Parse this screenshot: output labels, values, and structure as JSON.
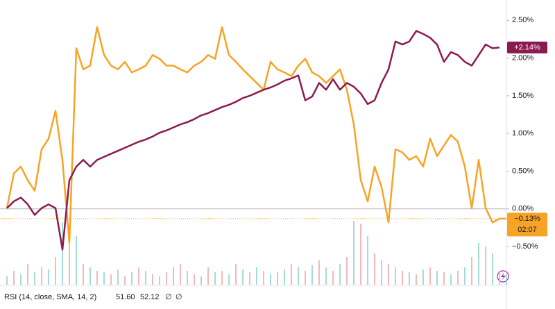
{
  "chart_data": {
    "type": "line",
    "categories": [
      null,
      null,
      null,
      null,
      null,
      null,
      null,
      null,
      null,
      null,
      null,
      null,
      null,
      null,
      null,
      null,
      null,
      null,
      null,
      null,
      null,
      null,
      null,
      null,
      null,
      null,
      null,
      null,
      null,
      null,
      null,
      null,
      null,
      null,
      null,
      null,
      null,
      null,
      null,
      null,
      null,
      null,
      null,
      null,
      null,
      null,
      null,
      null,
      null,
      null,
      null,
      null,
      null,
      null,
      null,
      null,
      null,
      null,
      null,
      null,
      null,
      null,
      null,
      null,
      null,
      null,
      null,
      null,
      null,
      null,
      null,
      null,
      null
    ],
    "series": [
      {
        "color": "#f7a325",
        "values": [
          0.01,
          0.47,
          0.56,
          0.38,
          0.24,
          0.79,
          0.93,
          1.3,
          0.65,
          -0.45,
          2.13,
          1.85,
          1.9,
          2.41,
          2.04,
          1.9,
          1.85,
          1.95,
          1.81,
          1.85,
          1.9,
          2.04,
          1.99,
          1.9,
          1.9,
          1.85,
          1.81,
          1.9,
          1.95,
          2.04,
          1.99,
          2.41,
          2.04,
          1.95,
          1.85,
          1.76,
          1.67,
          1.58,
          1.95,
          1.85,
          1.81,
          1.76,
          1.9,
          1.99,
          1.81,
          1.76,
          1.67,
          1.76,
          1.85,
          1.58,
          1.12,
          0.38,
          0.1,
          0.56,
          0.29,
          -0.18,
          0.79,
          0.75,
          0.65,
          0.7,
          0.56,
          0.93,
          0.7,
          0.84,
          0.98,
          0.89,
          0.56,
          0.01,
          0.65,
          0.01,
          -0.18,
          -0.13,
          -0.13
        ]
      },
      {
        "color": "#8b1a4f",
        "values": [
          0.01,
          0.1,
          0.15,
          0.06,
          -0.08,
          0.01,
          0.06,
          0.01,
          -0.54,
          0.38,
          0.56,
          0.65,
          0.56,
          0.65,
          0.69,
          0.73,
          0.77,
          0.81,
          0.85,
          0.89,
          0.92,
          0.96,
          1.01,
          1.04,
          1.08,
          1.12,
          1.15,
          1.19,
          1.24,
          1.27,
          1.31,
          1.35,
          1.38,
          1.42,
          1.47,
          1.5,
          1.54,
          1.58,
          1.61,
          1.65,
          1.7,
          1.73,
          1.77,
          1.44,
          1.49,
          1.67,
          1.58,
          1.72,
          1.58,
          1.67,
          1.62,
          1.53,
          1.39,
          1.44,
          1.67,
          1.85,
          2.22,
          2.18,
          2.22,
          2.36,
          2.32,
          2.27,
          2.18,
          1.95,
          2.08,
          2.04,
          1.95,
          1.9,
          2.04,
          2.18,
          2.13,
          2.14,
          null
        ]
      }
    ],
    "ylim": [
      -1.0,
      2.77
    ],
    "yticks": [
      {
        "value": 2.5,
        "label": "2.50%"
      },
      {
        "value": 2.0,
        "label": "2.00%"
      },
      {
        "value": 1.5,
        "label": "1.50%"
      },
      {
        "value": 1.0,
        "label": "1.00%"
      },
      {
        "value": 0.5,
        "label": "0.50%"
      },
      {
        "value": 0,
        "label": "0.00%"
      },
      {
        "value": -0.5,
        "label": "−0.50%"
      }
    ],
    "zero_line": true,
    "last_values": [
      {
        "value": 2.14,
        "label": "+2.14%",
        "color": "#8b1a4f"
      },
      {
        "value": -0.13,
        "label": "−0.13%",
        "color": "#f7a325",
        "countdown": "02:07"
      }
    ],
    "volume": {
      "vlim": [
        0,
        100
      ],
      "values": [
        12,
        20,
        15,
        30,
        18,
        25,
        22,
        40,
        90,
        85,
        70,
        30,
        25,
        20,
        18,
        15,
        22,
        12,
        18,
        25,
        20,
        15,
        12,
        18,
        25,
        30,
        20,
        15,
        12,
        25,
        18,
        20,
        15,
        30,
        22,
        18,
        25,
        20,
        15,
        18,
        22,
        30,
        25,
        20,
        28,
        35,
        25,
        20,
        30,
        40,
        92,
        88,
        70,
        45,
        35,
        30,
        25,
        20,
        18,
        15,
        22,
        25,
        20,
        18,
        15,
        20,
        25,
        40,
        60,
        55,
        45,
        20,
        15
      ],
      "up_color": "#8fd3cc",
      "down_color": "#f3a6a6"
    },
    "indicator": {
      "label": "RSI (14, close, SMA, 14, 2)",
      "values": [
        {
          "label": "51.60",
          "color": "#7e57c2"
        },
        {
          "label": "52.12",
          "color": "#f5d742"
        }
      ],
      "extras": [
        "∅",
        "∅"
      ]
    }
  }
}
